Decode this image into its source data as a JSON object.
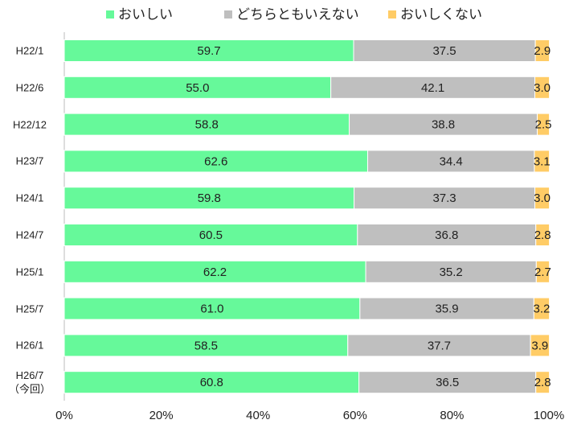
{
  "chart_data": {
    "type": "stacked-barh",
    "categories": [
      "H22/1",
      "H22/6",
      "H22/12",
      "H23/7",
      "H24/1",
      "H24/7",
      "H25/1",
      "H25/7",
      "H26/1",
      "H26/7\n（今回）"
    ],
    "series": [
      {
        "name": "おいしい",
        "color": "#66f99a",
        "values": [
          59.7,
          55.0,
          58.8,
          62.6,
          59.8,
          60.5,
          62.2,
          61.0,
          58.5,
          60.8
        ],
        "value_labels": [
          "59.7",
          "55.0",
          "58.8",
          "62.6",
          "59.8",
          "60.5",
          "62.2",
          "61.0",
          "58.5",
          "60.8"
        ]
      },
      {
        "name": "どちらともいえない",
        "color": "#bfbfbf",
        "values": [
          37.5,
          42.1,
          38.8,
          34.4,
          37.3,
          36.8,
          35.2,
          35.9,
          37.7,
          36.5
        ],
        "value_labels": [
          "37.5",
          "42.1",
          "38.8",
          "34.4",
          "37.3",
          "36.8",
          "35.2",
          "35.9",
          "37.7",
          "36.5"
        ]
      },
      {
        "name": "おいしくない",
        "color": "#ffcc66",
        "values": [
          2.9,
          3.0,
          2.5,
          3.1,
          3.0,
          2.8,
          2.7,
          3.2,
          3.9,
          2.8
        ],
        "value_labels": [
          "2.9",
          "3.0",
          "2.5",
          "3.1",
          "3.0",
          "2.8",
          "2.7",
          "3.2",
          "3.9",
          "2.8"
        ]
      }
    ],
    "xlim": [
      0,
      100
    ],
    "xticks": [
      {
        "value": 0,
        "label": "0%"
      },
      {
        "value": 20,
        "label": "20%"
      },
      {
        "value": 40,
        "label": "40%"
      },
      {
        "value": 60,
        "label": "60%"
      },
      {
        "value": 80,
        "label": "80%"
      },
      {
        "value": 100,
        "label": "100%"
      }
    ],
    "legend": "top"
  }
}
